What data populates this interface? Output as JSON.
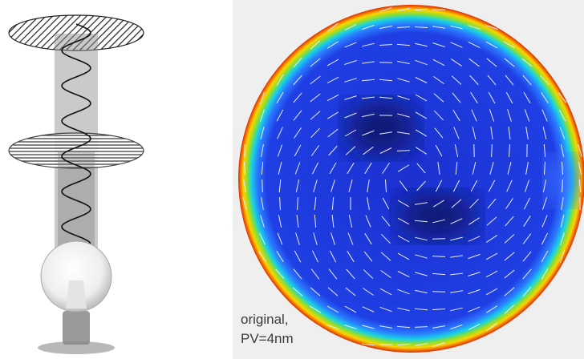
{
  "annotation": {
    "line1": "original,",
    "line2": "PV=4nm"
  }
}
